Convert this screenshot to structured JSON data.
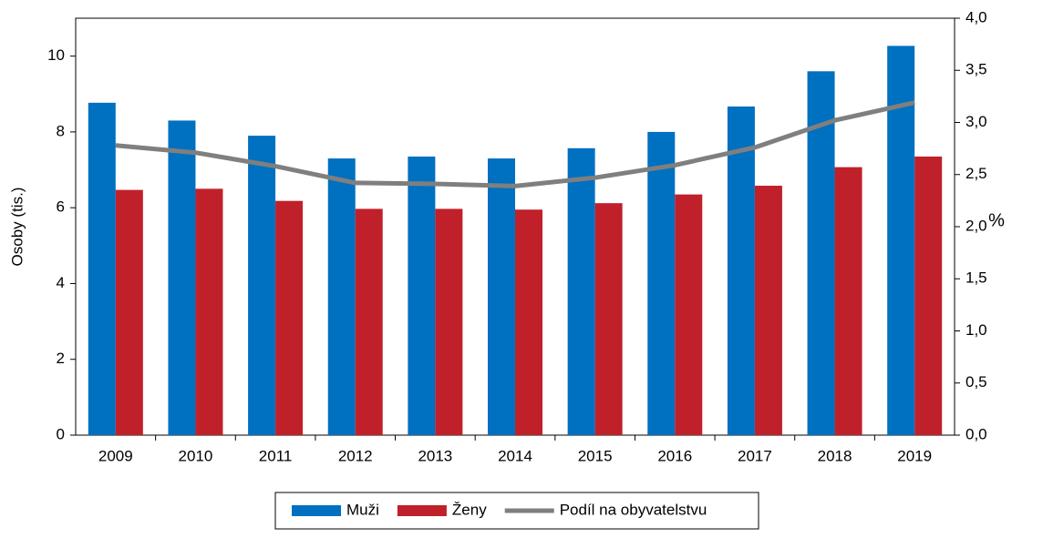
{
  "chart_data": {
    "type": "bar_line",
    "categories": [
      "2009",
      "2010",
      "2011",
      "2012",
      "2013",
      "2014",
      "2015",
      "2016",
      "2017",
      "2018",
      "2019"
    ],
    "series": [
      {
        "name": "Muži",
        "color": "#0070c0",
        "values": [
          8.77,
          8.3,
          7.9,
          7.3,
          7.35,
          7.3,
          7.57,
          8.0,
          8.67,
          9.6,
          10.27
        ]
      },
      {
        "name": "Ženy",
        "color": "#c0202a",
        "values": [
          6.47,
          6.5,
          6.18,
          5.97,
          5.97,
          5.95,
          6.12,
          6.35,
          6.58,
          7.07,
          7.35
        ]
      },
      {
        "name": "Podíl na obyvatelstvu",
        "color": "#7f7f7f",
        "axis": "y2",
        "type": "line",
        "values": [
          2.78,
          2.71,
          2.58,
          2.42,
          2.41,
          2.39,
          2.47,
          2.59,
          2.76,
          3.02,
          3.19
        ]
      }
    ],
    "ylabel": "Osoby (tis.)",
    "y2label": "%",
    "ylim": [
      0,
      11
    ],
    "yticks": [
      0,
      2,
      4,
      6,
      8,
      10
    ],
    "y2lim": [
      0,
      4
    ],
    "y2ticks": [
      {
        "value": 0,
        "label": "0,0"
      },
      {
        "value": 0.5,
        "label": "0,5"
      },
      {
        "value": 1,
        "label": "1,0"
      },
      {
        "value": 1.5,
        "label": "1,5"
      },
      {
        "value": 2,
        "label": "2,0"
      },
      {
        "value": 2.5,
        "label": "2,5"
      },
      {
        "value": 3,
        "label": "3,0"
      },
      {
        "value": 3.5,
        "label": "3,5"
      },
      {
        "value": 4,
        "label": "4,0"
      }
    ],
    "legend": "bottom"
  }
}
